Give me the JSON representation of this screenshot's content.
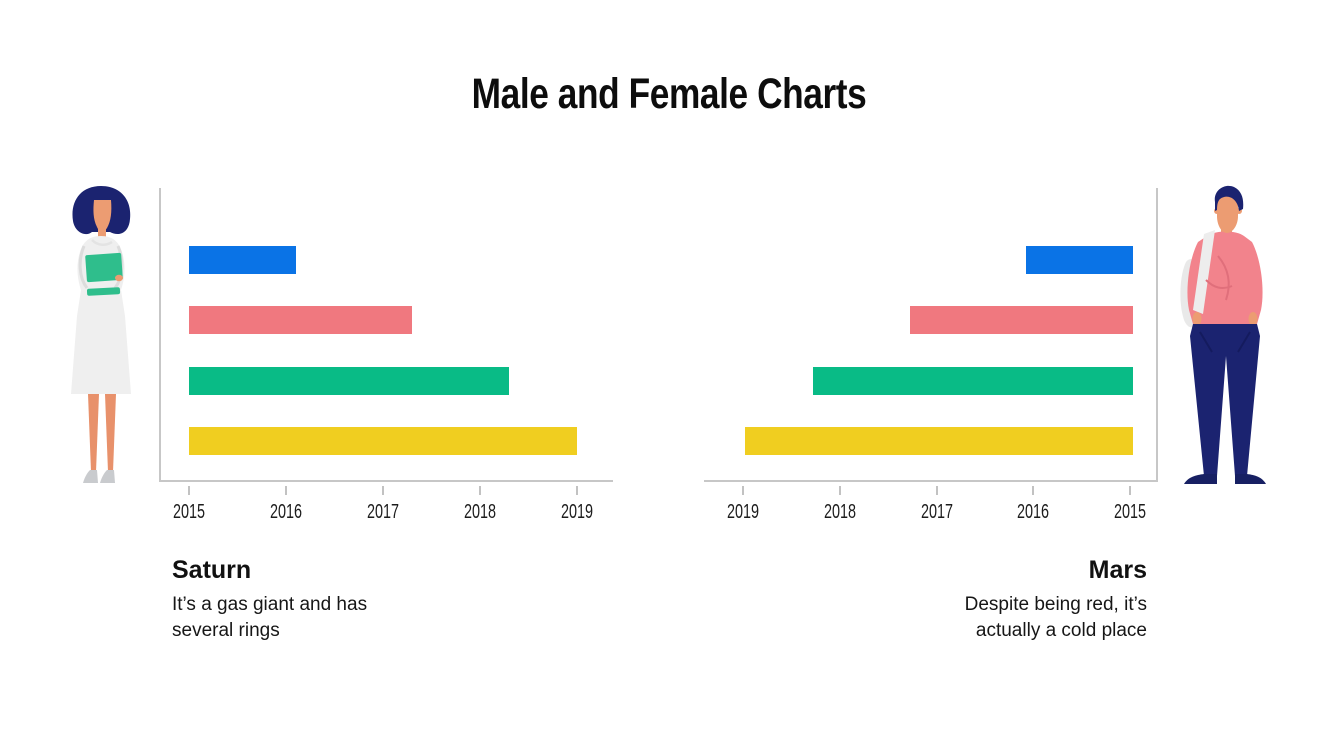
{
  "title": "Male and Female Charts",
  "colors": {
    "axis": "#C7C7C7",
    "bar_blue": "#0A73E6",
    "bar_red": "#F0787F",
    "bar_green": "#09BB86",
    "bar_yellow": "#F0CE20",
    "title_text": "#0D0D0D"
  },
  "illustrations": {
    "left": "woman-scientist-holding-clipboard",
    "right": "man-standing-hands-in-pockets"
  },
  "chart_data": [
    {
      "type": "bar",
      "orientation": "horizontal",
      "side": "left",
      "label": "Saturn",
      "description_lines": [
        "It’s a gas giant and has",
        "several rings"
      ],
      "axis_tick_labels": [
        "2015",
        "2016",
        "2017",
        "2018",
        "2019"
      ],
      "axis_range": [
        2015,
        2019
      ],
      "axis_reversed": false,
      "grid": false,
      "legend": false,
      "bars": [
        {
          "color_name": "blue",
          "color": "#0A73E6",
          "value": 2016.1
        },
        {
          "color_name": "red",
          "color": "#F0787F",
          "value": 2017.3
        },
        {
          "color_name": "green",
          "color": "#09BB86",
          "value": 2018.3
        },
        {
          "color_name": "yellow",
          "color": "#F0CE20",
          "value": 2019
        }
      ]
    },
    {
      "type": "bar",
      "orientation": "horizontal",
      "side": "right",
      "label": "Mars",
      "description_lines": [
        "Despite being red, it’s",
        "actually a cold place"
      ],
      "axis_tick_labels": [
        "2019",
        "2018",
        "2017",
        "2016",
        "2015"
      ],
      "axis_range": [
        2015,
        2019
      ],
      "axis_reversed": true,
      "grid": false,
      "legend": false,
      "bars": [
        {
          "color_name": "blue",
          "color": "#0A73E6",
          "value": 2016.1
        },
        {
          "color_name": "red",
          "color": "#F0787F",
          "value": 2017.3
        },
        {
          "color_name": "green",
          "color": "#09BB86",
          "value": 2018.3
        },
        {
          "color_name": "yellow",
          "color": "#F0CE20",
          "value": 2019
        }
      ]
    }
  ]
}
